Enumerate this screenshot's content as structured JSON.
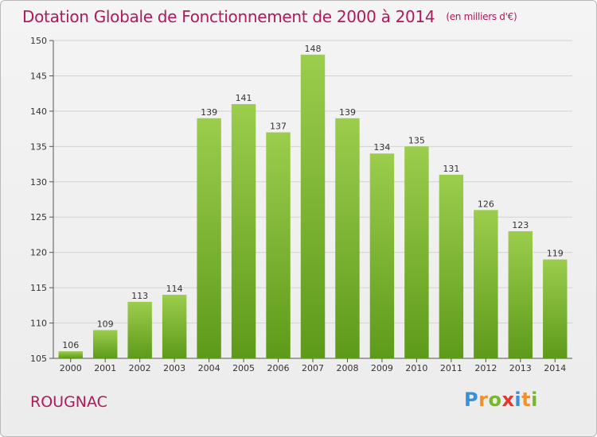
{
  "header": {
    "title": "Dotation Globale de Fonctionnement de 2000 à 2014",
    "unit": "(en milliers d'€)"
  },
  "footer": {
    "commune": "ROUGNAC",
    "logo_letters": [
      "P",
      "r",
      "o",
      "x",
      "i",
      "t",
      "i"
    ],
    "logo_colors": [
      "#3c8fd6",
      "#f0922b",
      "#7ab52f",
      "#e2372c",
      "#3c8fd6",
      "#f0922b",
      "#7ab52f"
    ]
  },
  "chart_data": {
    "type": "bar",
    "title": "Dotation Globale de Fonctionnement de 2000 à 2014",
    "subtitle": "(en milliers d'€)",
    "categories": [
      "2000",
      "2001",
      "2002",
      "2003",
      "2004",
      "2005",
      "2006",
      "2007",
      "2008",
      "2009",
      "2010",
      "2011",
      "2012",
      "2013",
      "2014"
    ],
    "values": [
      106,
      109,
      113,
      114,
      139,
      141,
      137,
      148,
      139,
      134,
      135,
      131,
      126,
      123,
      119
    ],
    "ylim": [
      105,
      150
    ],
    "yticks": [
      105,
      110,
      115,
      120,
      125,
      130,
      135,
      140,
      145,
      150
    ],
    "grid": true,
    "bar_color_top": "#9ccd4d",
    "bar_color_bottom": "#5e9a1a"
  }
}
